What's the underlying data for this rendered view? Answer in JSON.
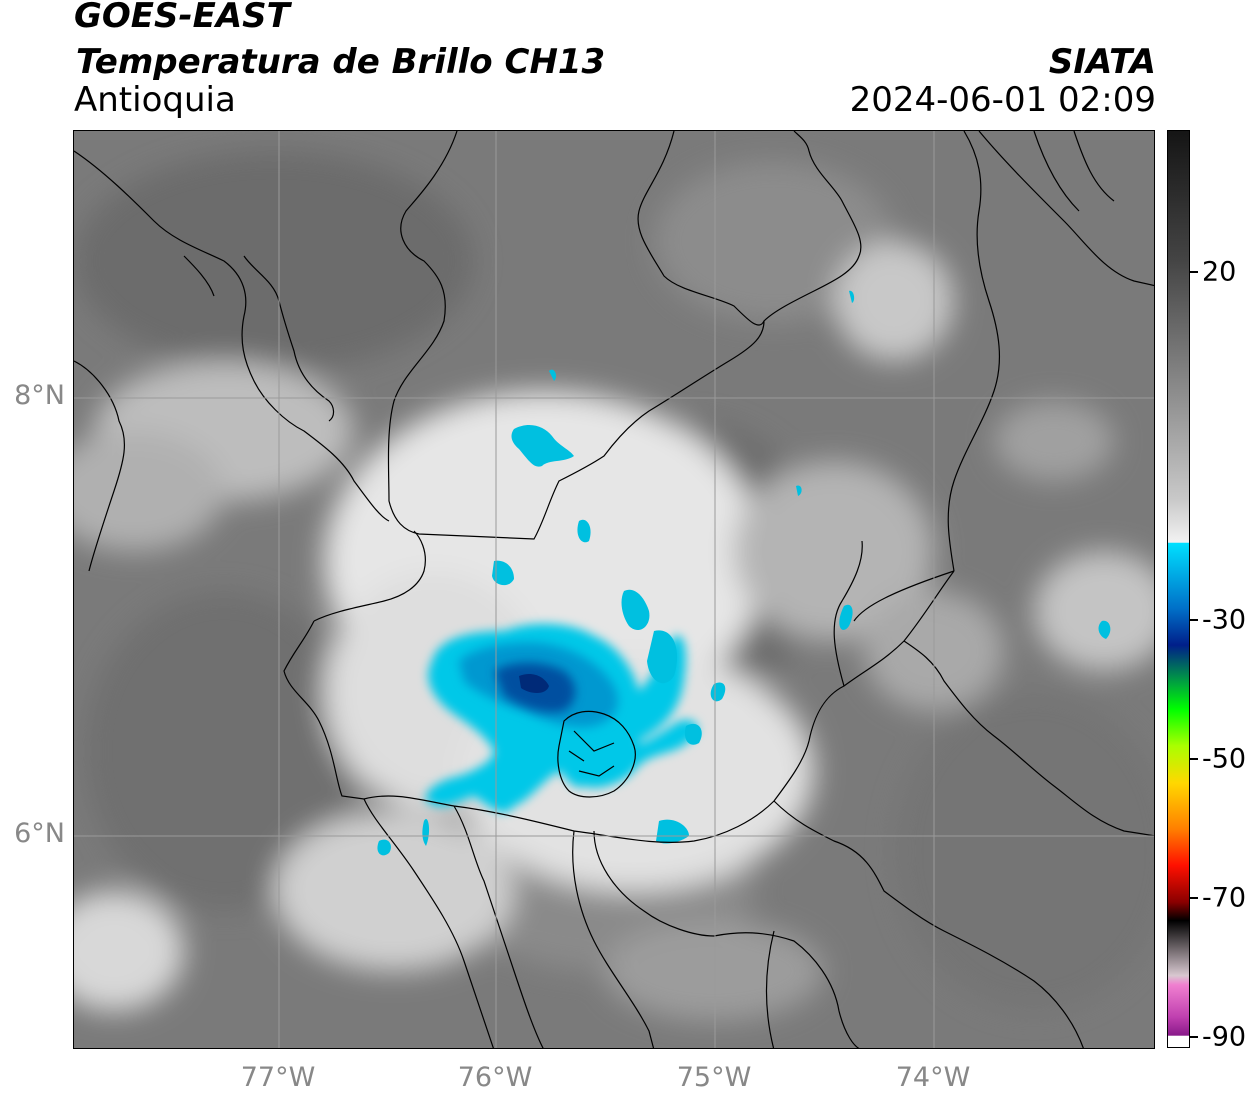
{
  "header": {
    "title_line1": "GOES-EAST",
    "title_line2": "Temperatura de Brillo CH13",
    "region": "Antioquia",
    "brand": "SIATA",
    "timestamp": "2024-06-01 02:09"
  },
  "map": {
    "latitude_labels": [
      "8°N",
      "6°N"
    ],
    "longitude_labels": [
      "77°W",
      "76°W",
      "75°W",
      "74°W"
    ],
    "gridlines": true,
    "colors": {
      "background_gray": "#7a7a7a",
      "cloud_white": "#f2f2f2",
      "cold_cyan": "#00c8e8",
      "cold_blue": "#0050a0",
      "border_line": "#000000"
    }
  },
  "colorbar": {
    "tick_labels": [
      "20",
      "-30",
      "-50",
      "-70",
      "-90"
    ],
    "tick_values": [
      20,
      -30,
      -50,
      -70,
      -90
    ],
    "min": -90,
    "max": 40,
    "unit_label": ""
  }
}
